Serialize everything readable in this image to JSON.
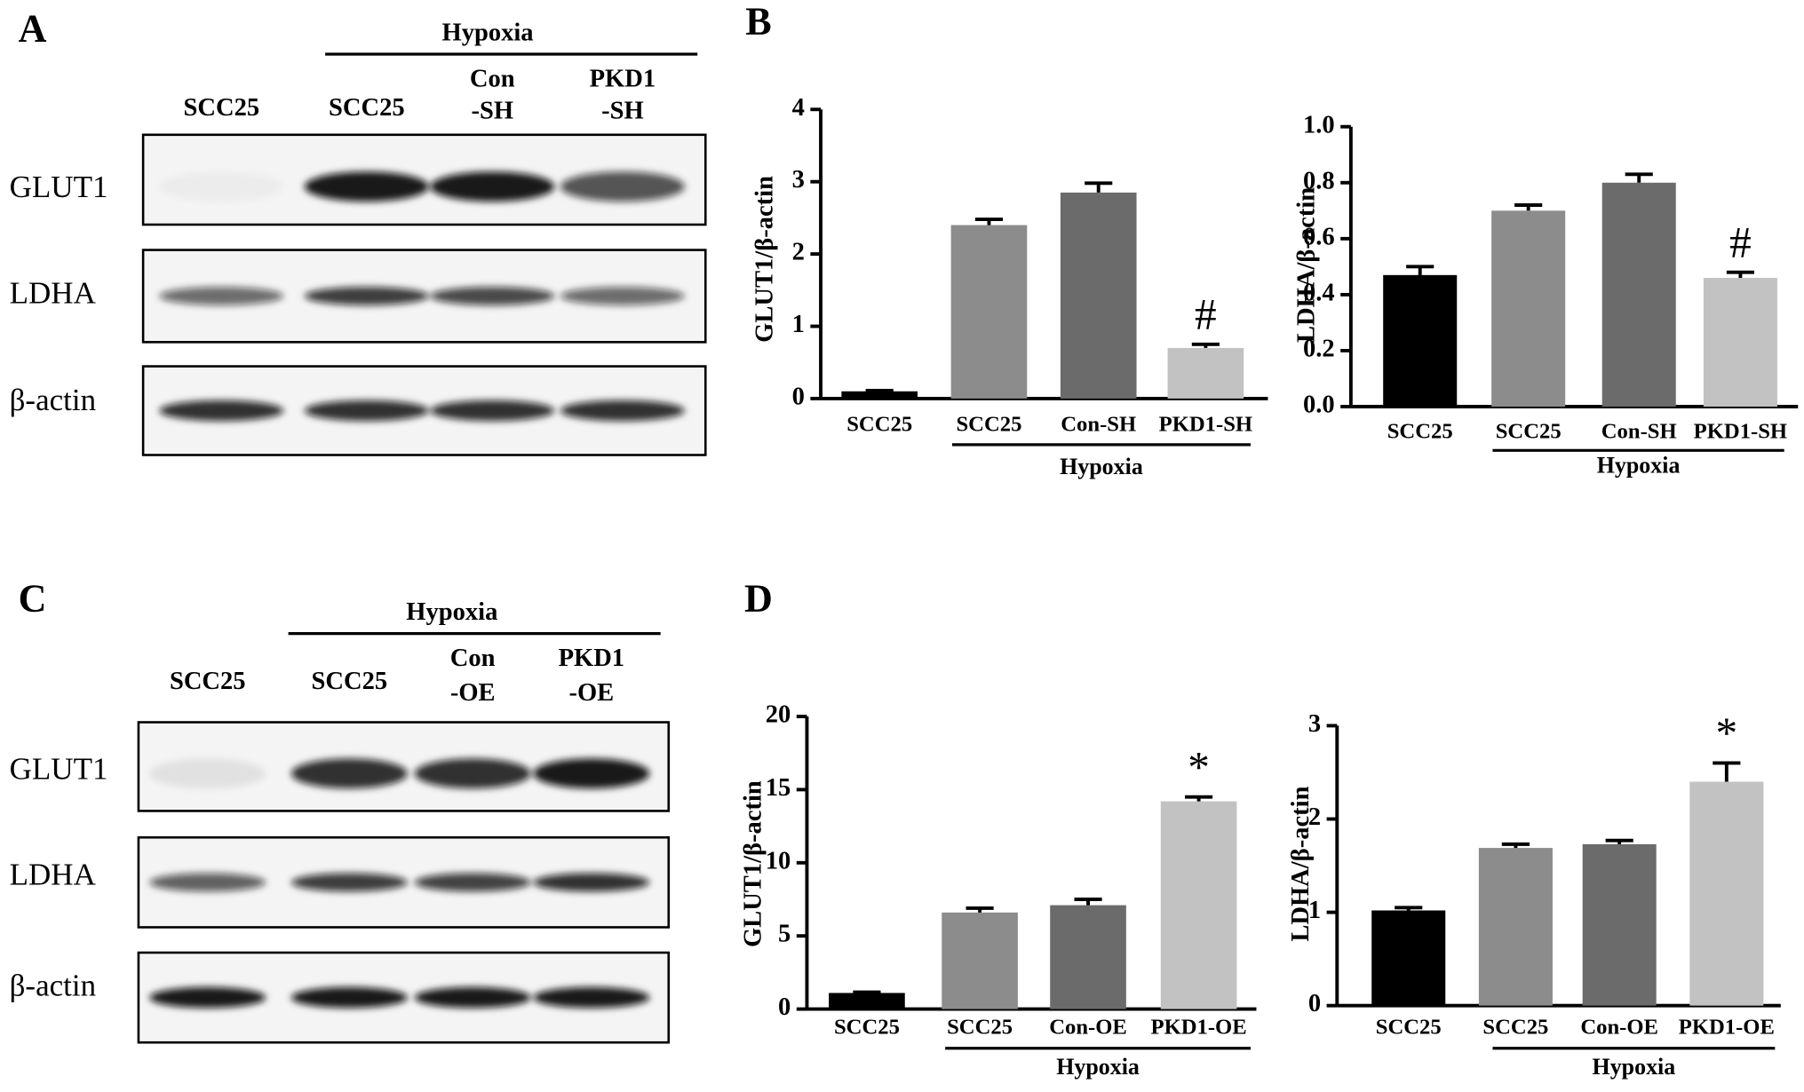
{
  "panels": [
    {
      "label": "A",
      "group_label": "Hypoxia",
      "lanes": [
        [
          "SCC25"
        ],
        [
          "SCC25"
        ],
        [
          "Con",
          "-SH"
        ],
        [
          "PKD1",
          "-SH"
        ]
      ],
      "rows": [
        "GLUT1",
        "LDHA",
        "β-actin"
      ]
    },
    {
      "label": "C",
      "group_label": "Hypoxia",
      "lanes": [
        [
          "SCC25"
        ],
        [
          "SCC25"
        ],
        [
          "Con",
          "-OE"
        ],
        [
          "PKD1",
          "-OE"
        ]
      ],
      "rows": [
        "GLUT1",
        "LDHA",
        "β-actin"
      ]
    }
  ],
  "chart_data": [
    {
      "type": "bar",
      "panel": "B",
      "y_label": "GLUT1/β-actin",
      "categories": [
        "SCC25",
        "SCC25",
        "Con-SH",
        "PKD1-SH"
      ],
      "group_label": "Hypoxia",
      "values": [
        0.1,
        2.4,
        2.85,
        0.7
      ],
      "errors": [
        0.01,
        0.08,
        0.13,
        0.05
      ],
      "colors": [
        "#000000",
        "#8c8c8c",
        "#6b6b6b",
        "#c2c2c2"
      ],
      "annotations": [
        null,
        null,
        null,
        "#"
      ],
      "ylim": [
        0,
        4
      ],
      "yticks": [
        0,
        1,
        2,
        3,
        4
      ]
    },
    {
      "type": "bar",
      "y_label": "LDHA/β-actin",
      "categories": [
        "SCC25",
        "SCC25",
        "Con-SH",
        "PKD1-SH"
      ],
      "group_label": "Hypoxia",
      "values": [
        0.47,
        0.7,
        0.8,
        0.46
      ],
      "errors": [
        0.03,
        0.02,
        0.03,
        0.02
      ],
      "colors": [
        "#000000",
        "#8c8c8c",
        "#6b6b6b",
        "#c2c2c2"
      ],
      "annotations": [
        null,
        null,
        null,
        "#"
      ],
      "ylim": [
        0,
        1
      ],
      "yticks": [
        {
          "value": 0,
          "label": "0.0"
        },
        0.2,
        0.4,
        0.6,
        0.8,
        {
          "value": 1,
          "label": "1.0"
        }
      ]
    },
    {
      "type": "bar",
      "panel": "D",
      "y_label": "GLUT1/β-actin",
      "categories": [
        "SCC25",
        "SCC25",
        "Con-OE",
        "PKD1-OE"
      ],
      "group_label": "Hypoxia",
      "values": [
        1.1,
        6.6,
        7.1,
        14.2
      ],
      "errors": [
        0.05,
        0.3,
        0.4,
        0.3
      ],
      "colors": [
        "#000000",
        "#8c8c8c",
        "#6b6b6b",
        "#c2c2c2"
      ],
      "annotations": [
        null,
        null,
        null,
        "*"
      ],
      "ylim": [
        0,
        20
      ],
      "yticks": [
        0,
        5,
        10,
        15,
        20
      ]
    },
    {
      "type": "bar",
      "y_label": "LDHA/β-actin",
      "categories": [
        "SCC25",
        "SCC25",
        "Con-OE",
        "PKD1-OE"
      ],
      "group_label": "Hypoxia",
      "values": [
        1.02,
        1.69,
        1.73,
        2.4
      ],
      "errors": [
        0.03,
        0.04,
        0.04,
        0.2
      ],
      "colors": [
        "#000000",
        "#8c8c8c",
        "#6b6b6b",
        "#c2c2c2"
      ],
      "annotations": [
        null,
        null,
        null,
        "*"
      ],
      "ylim": [
        0,
        3
      ],
      "yticks": [
        0,
        1,
        2,
        3
      ]
    }
  ]
}
